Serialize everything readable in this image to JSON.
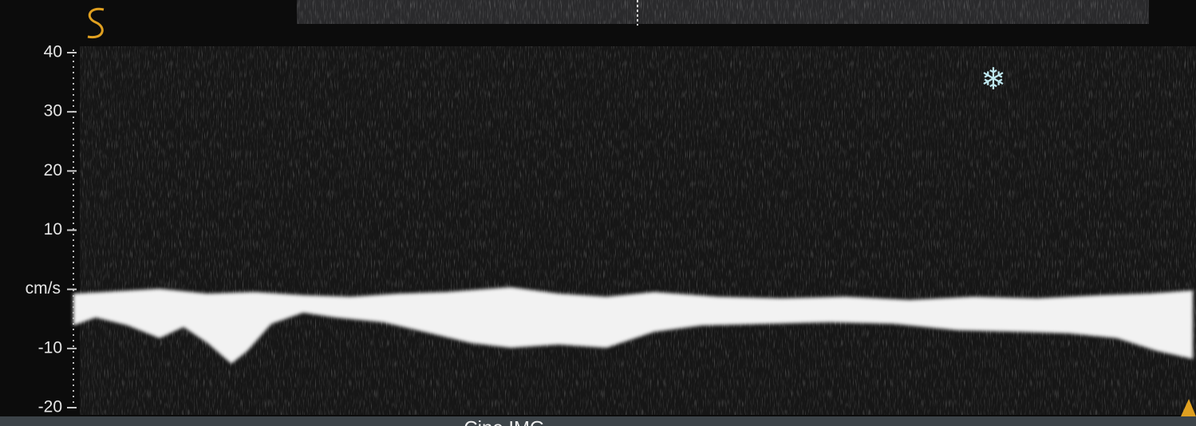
{
  "chart_data": {
    "type": "doppler",
    "ylim": [
      -20,
      40
    ],
    "yticks": [
      40,
      30,
      20,
      10,
      {
        "value": 0,
        "label": "cm/s"
      },
      -10,
      -20
    ],
    "annotations": [
      "Cine IMG"
    ]
  }
}
